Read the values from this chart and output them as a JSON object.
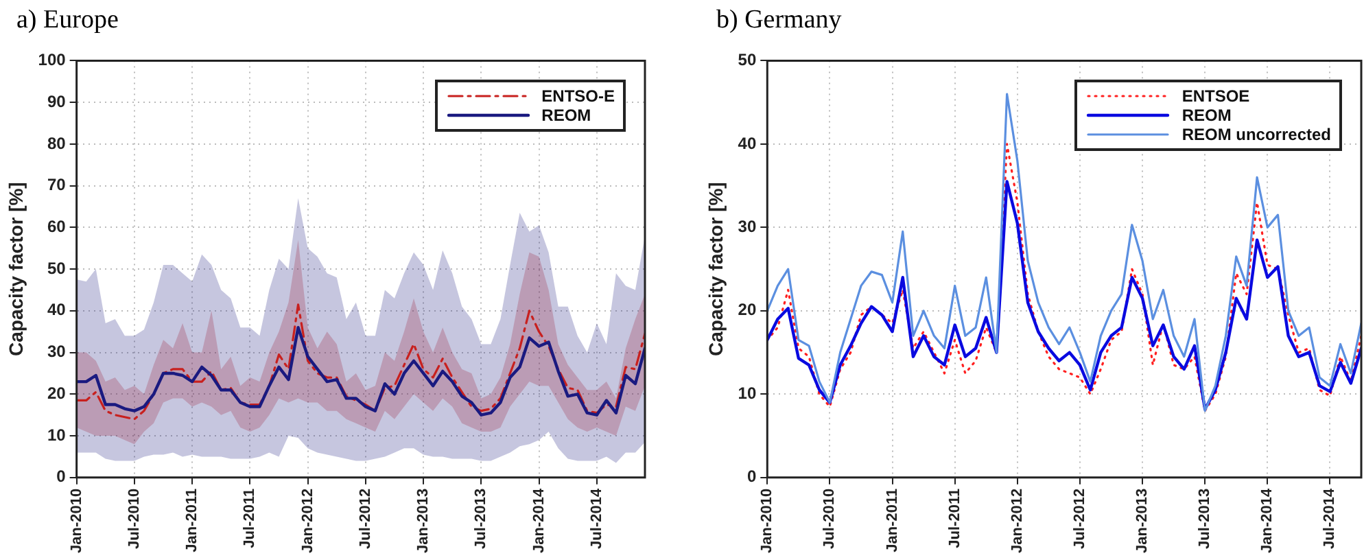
{
  "chart_data": [
    {
      "type": "line",
      "title": "a) Europe",
      "ylabel": "Capacity factor [%]",
      "grid": true,
      "legend": "top right",
      "xlim": [
        "2010-01",
        "2014-12"
      ],
      "ylim": [
        0,
        100
      ],
      "yticks": [
        0,
        10,
        20,
        30,
        40,
        50,
        60,
        70,
        80,
        90,
        100
      ],
      "xticks": [
        {
          "value": "2010-01",
          "label": "Jan-2010"
        },
        {
          "value": "2010-07",
          "label": "Jul-2010"
        },
        {
          "value": "2011-01",
          "label": "Jan-2011"
        },
        {
          "value": "2011-07",
          "label": "Jul-2011"
        },
        {
          "value": "2012-01",
          "label": "Jan-2012"
        },
        {
          "value": "2012-07",
          "label": "Jul-2012"
        },
        {
          "value": "2013-01",
          "label": "Jan-2013"
        },
        {
          "value": "2013-07",
          "label": "Jul-2013"
        },
        {
          "value": "2014-01",
          "label": "Jan-2014"
        },
        {
          "value": "2014-07",
          "label": "Jul-2014"
        }
      ],
      "x": [
        "2010-01",
        "2010-02",
        "2010-03",
        "2010-04",
        "2010-05",
        "2010-06",
        "2010-07",
        "2010-08",
        "2010-09",
        "2010-10",
        "2010-11",
        "2010-12",
        "2011-01",
        "2011-02",
        "2011-03",
        "2011-04",
        "2011-05",
        "2011-06",
        "2011-07",
        "2011-08",
        "2011-09",
        "2011-10",
        "2011-11",
        "2011-12",
        "2012-01",
        "2012-02",
        "2012-03",
        "2012-04",
        "2012-05",
        "2012-06",
        "2012-07",
        "2012-08",
        "2012-09",
        "2012-10",
        "2012-11",
        "2012-12",
        "2013-01",
        "2013-02",
        "2013-03",
        "2013-04",
        "2013-05",
        "2013-06",
        "2013-07",
        "2013-08",
        "2013-09",
        "2013-10",
        "2013-11",
        "2013-12",
        "2014-01",
        "2014-02",
        "2014-03",
        "2014-04",
        "2014-05",
        "2014-06",
        "2014-07",
        "2014-08",
        "2014-09",
        "2014-10",
        "2014-11",
        "2014-12"
      ],
      "series": [
        {
          "name": "ENTSO-E",
          "color": "#c8201e",
          "line_style": "dashed",
          "values": [
            18.5,
            18.5,
            20.5,
            16,
            15,
            14.5,
            14,
            16,
            20,
            25,
            26,
            26,
            23,
            23,
            25.5,
            21,
            21.5,
            18,
            17.5,
            17.5,
            22,
            29.5,
            26,
            41.5,
            28,
            25,
            24,
            24,
            19.5,
            18.5,
            17.5,
            16,
            21.5,
            22,
            27,
            32,
            26,
            24,
            28.5,
            24,
            20.5,
            17,
            16,
            16.5,
            19,
            25,
            31,
            40,
            35,
            31.5,
            26,
            21.5,
            21,
            16,
            15.5,
            17.5,
            17,
            26.5,
            26,
            34.5
          ],
          "lower": [
            12,
            11,
            10,
            10,
            10,
            9,
            8,
            11,
            13,
            18,
            19,
            19,
            17,
            18,
            17,
            15,
            16,
            12,
            11,
            12,
            15,
            19,
            18,
            19,
            18,
            18,
            16,
            16,
            14,
            13,
            12,
            11,
            16,
            14,
            17,
            20,
            18,
            16,
            19,
            17,
            13,
            12,
            11,
            11,
            12,
            17,
            20,
            23,
            22,
            22,
            18,
            14,
            12,
            11,
            12,
            11,
            10,
            17,
            16,
            22
          ],
          "upper": [
            30,
            30,
            28,
            23,
            24,
            21,
            22,
            20,
            27,
            33,
            31,
            37,
            30,
            30,
            40,
            26,
            29,
            22,
            24,
            23,
            30,
            35,
            42,
            57,
            36,
            31,
            35,
            32,
            23,
            25,
            21,
            22,
            30,
            28,
            35,
            43,
            35,
            30,
            36,
            30,
            26,
            25,
            19,
            20,
            24,
            32,
            44,
            54,
            53,
            45,
            32,
            27,
            24,
            21,
            21,
            23,
            19,
            31,
            38,
            44
          ]
        },
        {
          "name": "REOM",
          "color": "#1a1a80",
          "line_style": "solid",
          "values": [
            23,
            23,
            24.5,
            17.5,
            17.5,
            16.5,
            16,
            17,
            20,
            25,
            25,
            24.5,
            23,
            26.5,
            24.5,
            21,
            21,
            18,
            17,
            17,
            22,
            26.5,
            23.5,
            36,
            29,
            26,
            23,
            23.5,
            19,
            19,
            17,
            16,
            22.5,
            20,
            25,
            28,
            25,
            22,
            25.5,
            23,
            19.5,
            18,
            15,
            15.5,
            18,
            24,
            26.5,
            33.5,
            31.5,
            32.5,
            25.5,
            19.5,
            20,
            15.5,
            15,
            18.5,
            15.5,
            24.5,
            22.5,
            31
          ],
          "lower": [
            6,
            6,
            6,
            4.5,
            4,
            4,
            4,
            5,
            5.5,
            5.5,
            6,
            5,
            5.5,
            5,
            5,
            5,
            4.5,
            4.5,
            4.5,
            5,
            6,
            5,
            10,
            9.5,
            7,
            6,
            5.5,
            5,
            4.5,
            4,
            4,
            4.5,
            5,
            6,
            7,
            7,
            5.5,
            5,
            5,
            4.5,
            4.5,
            4.5,
            4,
            4,
            5,
            6,
            7.5,
            8,
            9,
            11,
            7,
            4.5,
            4,
            4,
            4,
            5,
            3.5,
            6,
            6,
            8.5
          ],
          "upper": [
            47.5,
            47,
            50,
            37,
            38,
            34,
            34,
            35.5,
            42,
            51,
            51,
            49,
            47,
            53.5,
            51,
            45,
            43,
            36,
            36,
            34,
            45,
            52.5,
            50,
            67,
            55,
            53,
            49,
            48,
            38,
            42,
            34,
            34,
            45,
            43,
            49,
            54,
            51,
            45,
            54.5,
            49,
            41,
            38,
            32,
            32,
            38,
            51,
            63.5,
            59,
            60.5,
            54,
            41,
            41,
            34,
            30,
            37,
            32,
            49,
            46,
            45,
            58
          ]
        }
      ]
    },
    {
      "type": "line",
      "title": "b) Germany",
      "ylabel": "Capacity factor [%]",
      "grid": true,
      "legend": "top right",
      "xlim": [
        "2010-01",
        "2014-10"
      ],
      "ylim": [
        0,
        50
      ],
      "yticks": [
        0,
        10,
        20,
        30,
        40,
        50
      ],
      "xticks": [
        {
          "value": "2010-01",
          "label": "Jan-2010"
        },
        {
          "value": "2010-07",
          "label": "Jul-2010"
        },
        {
          "value": "2011-01",
          "label": "Jan-2011"
        },
        {
          "value": "2011-07",
          "label": "Jul-2011"
        },
        {
          "value": "2012-01",
          "label": "Jan-2012"
        },
        {
          "value": "2012-07",
          "label": "Jul-2012"
        },
        {
          "value": "2013-01",
          "label": "Jan-2013"
        },
        {
          "value": "2013-07",
          "label": "Jul-2013"
        },
        {
          "value": "2014-01",
          "label": "Jan-2014"
        },
        {
          "value": "2014-07",
          "label": "Jul-2014"
        }
      ],
      "x": [
        "2010-01",
        "2010-02",
        "2010-03",
        "2010-04",
        "2010-05",
        "2010-06",
        "2010-07",
        "2010-08",
        "2010-09",
        "2010-10",
        "2010-11",
        "2010-12",
        "2011-01",
        "2011-02",
        "2011-03",
        "2011-04",
        "2011-05",
        "2011-06",
        "2011-07",
        "2011-08",
        "2011-09",
        "2011-10",
        "2011-11",
        "2011-12",
        "2012-01",
        "2012-02",
        "2012-03",
        "2012-04",
        "2012-05",
        "2012-06",
        "2012-07",
        "2012-08",
        "2012-09",
        "2012-10",
        "2012-11",
        "2012-12",
        "2013-01",
        "2013-02",
        "2013-03",
        "2013-04",
        "2013-05",
        "2013-06",
        "2013-07",
        "2013-08",
        "2013-09",
        "2013-10",
        "2013-11",
        "2013-12",
        "2014-01",
        "2014-02",
        "2014-03",
        "2014-04",
        "2014-05",
        "2014-06",
        "2014-07",
        "2014-08",
        "2014-09",
        "2014-10"
      ],
      "series": [
        {
          "name": "ENTSOE",
          "color": "#ff2020",
          "line_style": "dotted",
          "values": [
            16.5,
            18,
            22.5,
            15.5,
            14.5,
            10,
            8.5,
            13,
            15,
            19.5,
            20.5,
            19.5,
            18.5,
            22.5,
            15.5,
            17.5,
            15,
            12.5,
            16.5,
            12.5,
            14,
            18,
            15,
            40,
            33,
            22,
            17.5,
            14.5,
            13,
            12.5,
            12,
            10,
            13,
            16.5,
            17.5,
            25,
            22,
            13.5,
            18.5,
            13.5,
            13,
            14.5,
            8,
            10,
            14.5,
            24.5,
            22,
            33,
            25.5,
            25,
            19.5,
            15,
            15.5,
            10.5,
            9.8,
            14.5,
            11.5,
            17
          ]
        },
        {
          "name": "REOM",
          "color": "#0a0ae0",
          "line_style": "solid",
          "values": [
            16.5,
            19,
            20.3,
            14.3,
            13.5,
            10.5,
            9,
            13.5,
            15.8,
            18.5,
            20.5,
            19.5,
            17.5,
            24,
            14.5,
            17,
            14.5,
            13.5,
            18.3,
            14.5,
            15.5,
            19.2,
            15,
            35.5,
            30.5,
            21,
            17.5,
            15.5,
            14,
            15,
            13.5,
            10.5,
            15,
            17,
            18,
            24,
            21.5,
            15.8,
            18.3,
            14.5,
            13,
            15.8,
            8.2,
            10.5,
            15,
            21.5,
            19,
            28.5,
            24,
            25.3,
            17,
            14.5,
            15,
            11,
            10.3,
            13.8,
            11.3,
            15.5
          ]
        },
        {
          "name": "REOM uncorrected",
          "color": "#5b8fe0",
          "line_style": "solid",
          "values": [
            20,
            23,
            25,
            16.5,
            15.8,
            11.5,
            9,
            15,
            19,
            23,
            24.7,
            24.3,
            21,
            29.5,
            17,
            20,
            17,
            15.5,
            23,
            17,
            18,
            24,
            15,
            46,
            38,
            26,
            21,
            18,
            16,
            18,
            15,
            11.5,
            17,
            20,
            22,
            30.3,
            26,
            19,
            22.5,
            17,
            14.5,
            19,
            8,
            11,
            17,
            26.5,
            23,
            36,
            30,
            31.5,
            20,
            17,
            18,
            12,
            11,
            16,
            12.5,
            18.5
          ]
        }
      ]
    }
  ]
}
